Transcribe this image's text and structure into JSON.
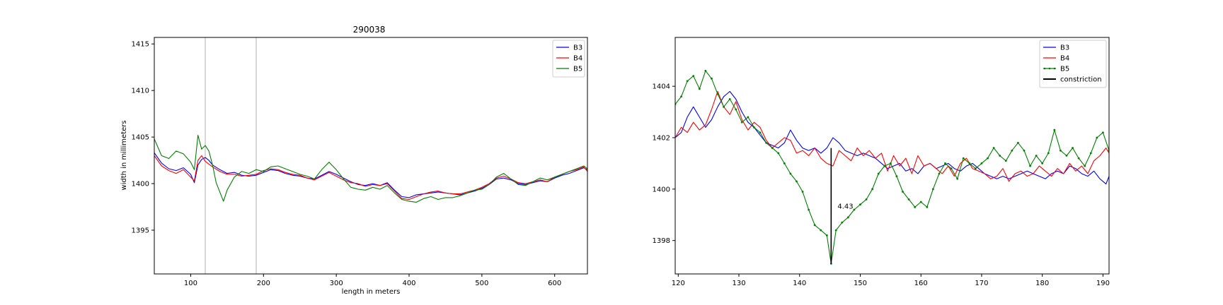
{
  "chart_data": [
    {
      "type": "line",
      "title": "290038",
      "xlabel": "length in meters",
      "ylabel": "width in millimeters",
      "xlim": [
        50,
        645
      ],
      "ylim": [
        1390.3,
        1415.7
      ],
      "xticks": [
        100,
        200,
        300,
        400,
        500,
        600
      ],
      "yticks": [
        1395,
        1400,
        1405,
        1410,
        1415
      ],
      "vlines": [
        120,
        190
      ],
      "grid": false,
      "legend": "top-right",
      "series": [
        {
          "name": "B3",
          "color": "#0000ff",
          "markers": false,
          "x": [
            50,
            60,
            70,
            80,
            90,
            100,
            105,
            110,
            115,
            120,
            125,
            130,
            140,
            150,
            160,
            170,
            180,
            190,
            200,
            210,
            220,
            230,
            240,
            250,
            260,
            270,
            280,
            290,
            300,
            310,
            320,
            330,
            340,
            350,
            360,
            370,
            380,
            390,
            400,
            410,
            420,
            430,
            440,
            450,
            460,
            470,
            480,
            490,
            500,
            510,
            520,
            530,
            540,
            550,
            560,
            570,
            580,
            590,
            600,
            610,
            620,
            630,
            640,
            645
          ],
          "y": [
            1403.3,
            1402.2,
            1401.6,
            1401.4,
            1401.7,
            1401.0,
            1400.1,
            1402.0,
            1402.6,
            1402.8,
            1402.5,
            1402.0,
            1401.5,
            1401.1,
            1401.2,
            1400.9,
            1400.8,
            1400.9,
            1401.2,
            1401.5,
            1401.4,
            1401.1,
            1400.9,
            1400.8,
            1400.6,
            1400.5,
            1400.9,
            1401.3,
            1401.0,
            1400.6,
            1400.2,
            1399.9,
            1399.8,
            1400.0,
            1399.8,
            1400.1,
            1399.3,
            1398.6,
            1398.5,
            1398.8,
            1398.9,
            1399.0,
            1399.1,
            1399.0,
            1398.9,
            1398.8,
            1399.0,
            1399.2,
            1399.5,
            1399.9,
            1400.5,
            1400.6,
            1400.4,
            1400.0,
            1399.9,
            1400.1,
            1400.3,
            1400.2,
            1400.6,
            1400.9,
            1401.1,
            1401.4,
            1401.7,
            1401.5
          ]
        },
        {
          "name": "B4",
          "color": "#ff0000",
          "markers": false,
          "x": [
            50,
            60,
            70,
            80,
            90,
            100,
            105,
            110,
            115,
            120,
            125,
            130,
            140,
            150,
            160,
            170,
            180,
            190,
            200,
            210,
            220,
            230,
            240,
            250,
            260,
            270,
            280,
            290,
            300,
            310,
            320,
            330,
            340,
            350,
            360,
            370,
            380,
            390,
            400,
            410,
            420,
            430,
            440,
            450,
            460,
            470,
            480,
            490,
            500,
            510,
            520,
            530,
            540,
            550,
            560,
            570,
            580,
            590,
            600,
            610,
            620,
            630,
            640,
            645
          ],
          "y": [
            1403.0,
            1401.9,
            1401.4,
            1401.1,
            1401.5,
            1400.7,
            1400.3,
            1402.5,
            1403.0,
            1402.4,
            1402.1,
            1401.8,
            1401.3,
            1401.0,
            1401.0,
            1400.8,
            1400.9,
            1401.0,
            1401.4,
            1401.6,
            1401.5,
            1401.2,
            1401.0,
            1400.9,
            1400.6,
            1400.4,
            1400.8,
            1401.2,
            1400.8,
            1400.4,
            1400.1,
            1400.0,
            1399.7,
            1399.9,
            1399.8,
            1400.0,
            1399.2,
            1398.4,
            1398.3,
            1398.6,
            1398.9,
            1399.1,
            1399.2,
            1399.0,
            1398.9,
            1398.9,
            1399.1,
            1399.3,
            1399.6,
            1400.0,
            1400.6,
            1400.8,
            1400.5,
            1400.1,
            1400.0,
            1400.2,
            1400.4,
            1400.2,
            1400.7,
            1401.0,
            1401.3,
            1401.5,
            1401.8,
            1401.3
          ]
        },
        {
          "name": "B5",
          "color": "#008000",
          "markers": false,
          "x": [
            50,
            60,
            70,
            80,
            90,
            100,
            105,
            110,
            115,
            120,
            125,
            130,
            135,
            140,
            145,
            150,
            160,
            170,
            180,
            190,
            200,
            210,
            220,
            230,
            240,
            250,
            260,
            270,
            280,
            290,
            300,
            310,
            320,
            330,
            340,
            350,
            360,
            370,
            380,
            390,
            400,
            410,
            420,
            430,
            440,
            450,
            460,
            470,
            480,
            490,
            500,
            510,
            520,
            530,
            540,
            550,
            560,
            570,
            580,
            590,
            600,
            610,
            620,
            630,
            640,
            645
          ],
          "y": [
            1404.8,
            1403.0,
            1402.7,
            1403.5,
            1403.2,
            1402.3,
            1401.5,
            1405.2,
            1403.7,
            1404.1,
            1403.5,
            1402.0,
            1400.1,
            1399.1,
            1398.1,
            1399.3,
            1400.7,
            1401.3,
            1401.1,
            1401.5,
            1401.3,
            1401.8,
            1401.9,
            1401.6,
            1401.3,
            1401.0,
            1400.8,
            1400.5,
            1401.5,
            1402.3,
            1401.5,
            1400.5,
            1399.6,
            1399.4,
            1399.3,
            1399.6,
            1399.4,
            1399.8,
            1399.0,
            1398.3,
            1398.1,
            1398.0,
            1398.4,
            1398.6,
            1398.3,
            1398.5,
            1398.5,
            1398.7,
            1399.0,
            1399.3,
            1399.4,
            1399.9,
            1400.7,
            1401.1,
            1400.5,
            1399.9,
            1399.8,
            1400.2,
            1400.6,
            1400.4,
            1400.7,
            1401.0,
            1401.3,
            1401.6,
            1401.9,
            1401.6
          ]
        }
      ]
    },
    {
      "type": "line",
      "title": "",
      "xlabel": "",
      "ylabel": "",
      "xlim": [
        119.5,
        191
      ],
      "ylim": [
        1396.7,
        1405.9
      ],
      "xticks": [
        120,
        130,
        140,
        150,
        160,
        170,
        180,
        190
      ],
      "yticks": [
        1398,
        1400,
        1402,
        1404
      ],
      "grid": false,
      "legend": "top-right",
      "constriction": {
        "x": 145.2,
        "y_from": 1397.1,
        "y_to": 1401.6,
        "label": "4.43"
      },
      "series": [
        {
          "name": "B3",
          "color": "#0000ff",
          "markers": false,
          "x": [
            119.5,
            120.5,
            121.5,
            122.5,
            123.5,
            124.5,
            125.5,
            126.5,
            127.5,
            128.5,
            129.5,
            130.5,
            131.5,
            132.5,
            133.5,
            134.5,
            135.5,
            136.5,
            137.5,
            138.5,
            139.5,
            140.5,
            141.5,
            142.5,
            143.5,
            144.5,
            145.5,
            146.5,
            147.5,
            148.5,
            149.5,
            150.5,
            151.5,
            152.5,
            153.5,
            154.5,
            155.5,
            156.5,
            157.5,
            158.5,
            159.5,
            160.5,
            161.5,
            162.5,
            163.5,
            164.5,
            165.5,
            166.5,
            167.5,
            168.5,
            169.5,
            170.5,
            171.5,
            172.5,
            173.5,
            174.5,
            175.5,
            176.5,
            177.5,
            178.5,
            179.5,
            180.5,
            181.5,
            182.5,
            183.5,
            184.5,
            185.5,
            186.5,
            187.5,
            188.5,
            189.5,
            190.5,
            191.0
          ],
          "y": [
            1402.0,
            1402.2,
            1402.8,
            1403.2,
            1402.8,
            1402.4,
            1402.7,
            1403.2,
            1403.6,
            1403.8,
            1403.5,
            1403.0,
            1402.6,
            1402.4,
            1402.1,
            1401.8,
            1401.7,
            1401.6,
            1401.8,
            1402.3,
            1401.9,
            1401.6,
            1401.5,
            1401.6,
            1401.4,
            1401.6,
            1402.0,
            1401.8,
            1401.5,
            1401.4,
            1401.3,
            1401.4,
            1401.3,
            1401.2,
            1401.0,
            1400.8,
            1400.9,
            1401.0,
            1400.7,
            1400.8,
            1400.6,
            1400.9,
            1401.0,
            1400.8,
            1400.9,
            1401.0,
            1400.8,
            1400.7,
            1400.9,
            1401.0,
            1400.8,
            1400.6,
            1400.5,
            1400.4,
            1400.5,
            1400.4,
            1400.5,
            1400.6,
            1400.7,
            1400.6,
            1400.5,
            1400.4,
            1400.6,
            1400.7,
            1400.6,
            1400.9,
            1400.8,
            1400.6,
            1400.5,
            1400.7,
            1400.4,
            1400.2,
            1400.5
          ]
        },
        {
          "name": "B4",
          "color": "#ff0000",
          "markers": false,
          "x": [
            119.5,
            120.5,
            121.5,
            122.5,
            123.5,
            124.5,
            125.5,
            126.5,
            127.5,
            128.5,
            129.5,
            130.5,
            131.5,
            132.5,
            133.5,
            134.5,
            135.5,
            136.5,
            137.5,
            138.5,
            139.5,
            140.5,
            141.5,
            142.5,
            143.5,
            144.5,
            145.5,
            146.5,
            147.5,
            148.5,
            149.5,
            150.5,
            151.5,
            152.5,
            153.5,
            154.5,
            155.5,
            156.5,
            157.5,
            158.5,
            159.5,
            160.5,
            161.5,
            162.5,
            163.5,
            164.5,
            165.5,
            166.5,
            167.5,
            168.5,
            169.5,
            170.5,
            171.5,
            172.5,
            173.5,
            174.5,
            175.5,
            176.5,
            177.5,
            178.5,
            179.5,
            180.5,
            181.5,
            182.5,
            183.5,
            184.5,
            185.5,
            186.5,
            187.5,
            188.5,
            189.5,
            190.5,
            191.0
          ],
          "y": [
            1402.0,
            1402.4,
            1402.2,
            1402.6,
            1402.3,
            1402.5,
            1403.1,
            1403.8,
            1403.2,
            1402.9,
            1403.4,
            1402.7,
            1402.3,
            1402.6,
            1402.4,
            1401.9,
            1401.6,
            1401.8,
            1402.0,
            1401.9,
            1401.4,
            1401.5,
            1401.3,
            1401.6,
            1401.2,
            1401.0,
            1400.9,
            1401.5,
            1401.3,
            1401.1,
            1401.6,
            1401.3,
            1401.5,
            1401.2,
            1401.4,
            1400.7,
            1401.3,
            1400.9,
            1401.2,
            1400.6,
            1401.3,
            1400.9,
            1401.0,
            1400.8,
            1400.6,
            1400.9,
            1400.5,
            1401.0,
            1401.2,
            1400.8,
            1400.7,
            1400.6,
            1400.4,
            1400.5,
            1400.8,
            1400.3,
            1400.6,
            1400.7,
            1400.5,
            1400.6,
            1400.9,
            1400.7,
            1400.5,
            1400.8,
            1400.6,
            1401.0,
            1400.7,
            1400.9,
            1400.6,
            1401.1,
            1401.3,
            1401.6,
            1401.4
          ]
        },
        {
          "name": "B5",
          "color": "#008000",
          "markers": true,
          "x": [
            119.5,
            120.5,
            121.5,
            122.5,
            123.5,
            124.5,
            125.5,
            126.5,
            127.5,
            128.5,
            129.5,
            130.5,
            131.5,
            132.5,
            133.5,
            134.5,
            135.5,
            136.5,
            137.5,
            138.5,
            139.5,
            140.5,
            141.5,
            142.5,
            143.5,
            144.5,
            145.2,
            146.0,
            147.0,
            148.0,
            149.0,
            150.0,
            151.0,
            152.0,
            153.0,
            154.0,
            155.0,
            156.0,
            157.0,
            158.0,
            159.0,
            160.0,
            161.0,
            162.0,
            163.0,
            164.0,
            165.0,
            166.0,
            167.0,
            168.0,
            169.0,
            170.0,
            171.0,
            172.0,
            173.0,
            174.0,
            175.0,
            176.0,
            177.0,
            178.0,
            179.0,
            180.0,
            181.0,
            182.0,
            183.0,
            184.0,
            185.0,
            186.0,
            187.0,
            188.0,
            189.0,
            190.0,
            191.0
          ],
          "y": [
            1403.3,
            1403.6,
            1404.2,
            1404.4,
            1403.9,
            1404.6,
            1404.3,
            1403.7,
            1403.2,
            1403.5,
            1403.1,
            1402.6,
            1402.8,
            1402.4,
            1402.2,
            1401.8,
            1401.6,
            1401.4,
            1401.0,
            1400.6,
            1400.3,
            1399.9,
            1399.2,
            1398.6,
            1398.4,
            1398.2,
            1397.1,
            1398.4,
            1398.7,
            1398.9,
            1399.2,
            1399.4,
            1399.6,
            1400.0,
            1400.6,
            1400.9,
            1401.0,
            1400.5,
            1399.9,
            1399.6,
            1399.3,
            1399.5,
            1399.3,
            1400.0,
            1400.6,
            1401.0,
            1400.8,
            1400.4,
            1401.2,
            1401.0,
            1400.8,
            1401.0,
            1401.2,
            1401.6,
            1401.3,
            1401.1,
            1401.5,
            1401.8,
            1401.5,
            1400.9,
            1401.3,
            1401.0,
            1401.4,
            1402.3,
            1401.5,
            1401.3,
            1401.6,
            1401.2,
            1400.9,
            1401.4,
            1402.0,
            1402.2,
            1401.5
          ]
        },
        {
          "name": "constriction",
          "color": "#000000",
          "markers": false,
          "x": [],
          "y": []
        }
      ]
    }
  ]
}
